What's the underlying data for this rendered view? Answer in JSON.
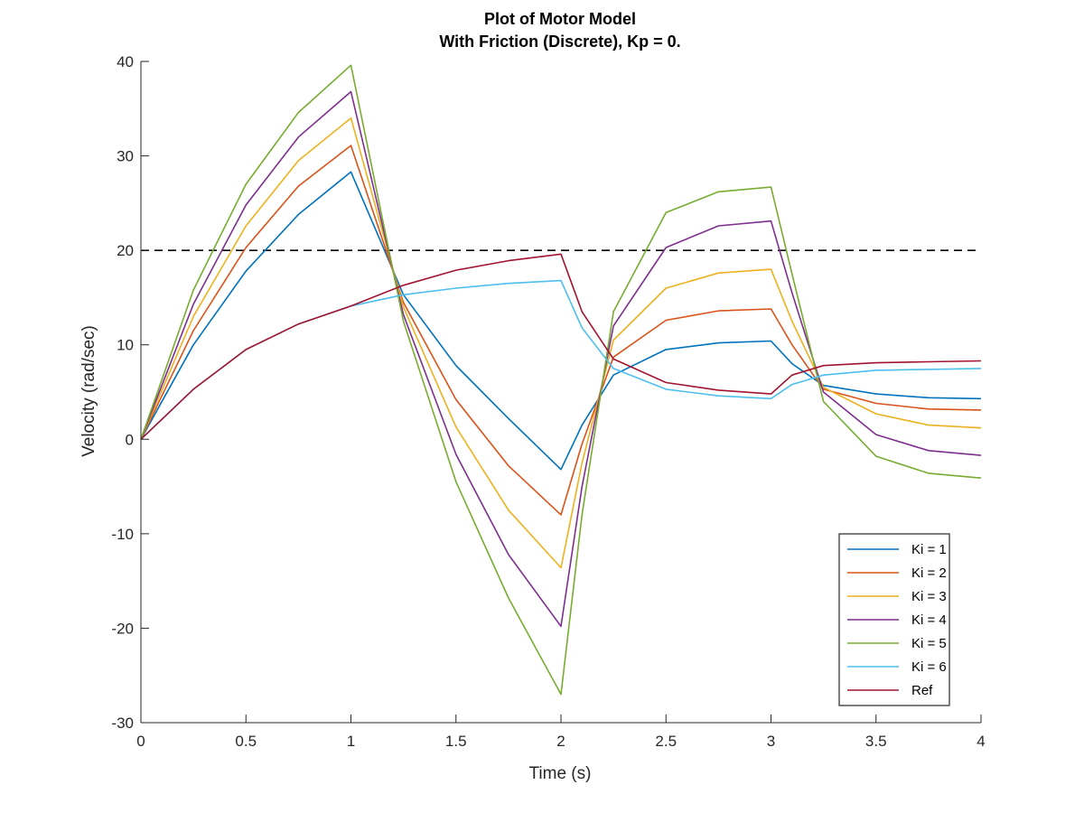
{
  "chart_data": {
    "type": "line",
    "title_line1": "Plot of Motor Model",
    "title_line2": "With Friction (Discrete), Kp = 0.",
    "xlabel": "Time (s)",
    "ylabel": "Velocity (rad/sec)",
    "xlim": [
      0,
      4
    ],
    "ylim": [
      -30,
      40
    ],
    "xticks": [
      0,
      0.5,
      1,
      1.5,
      2,
      2.5,
      3,
      3.5,
      4
    ],
    "yticks": [
      -30,
      -20,
      -10,
      0,
      10,
      20,
      30,
      40
    ],
    "xtick_labels": [
      "0",
      "0.5",
      "1",
      "1.5",
      "2",
      "2.5",
      "3",
      "3.5",
      "4"
    ],
    "ytick_labels": [
      "-30",
      "-20",
      "-10",
      "0",
      "10",
      "20",
      "30",
      "40"
    ],
    "grid": false,
    "legend_position": "bottom-right",
    "reference_line": {
      "y": 20,
      "style": "dashed",
      "color": "#000000"
    },
    "series": [
      {
        "name": "Ki = 1",
        "color": "#0072BD",
        "x": [
          0,
          0.25,
          0.5,
          0.75,
          1,
          1.25,
          1.5,
          1.75,
          2,
          2.1,
          2.25,
          2.5,
          2.75,
          3,
          3.1,
          3.25,
          3.5,
          3.75,
          4
        ],
        "y": [
          0,
          10,
          17.8,
          23.8,
          28.3,
          15.3,
          7.8,
          2.2,
          -3.2,
          1.5,
          6.8,
          9.5,
          10.2,
          10.4,
          8,
          5.7,
          4.8,
          4.4,
          4.3
        ]
      },
      {
        "name": "Ki = 2",
        "color": "#D95319",
        "x": [
          0,
          0.25,
          0.5,
          0.75,
          1,
          1.25,
          1.5,
          1.75,
          2,
          2.1,
          2.25,
          2.5,
          2.75,
          3,
          3.1,
          3.25,
          3.5,
          3.75,
          4
        ],
        "y": [
          0,
          11.5,
          20.3,
          26.8,
          31.1,
          14.5,
          4.2,
          -2.8,
          -8,
          -0.5,
          8.7,
          12.6,
          13.6,
          13.8,
          10,
          5.3,
          3.8,
          3.2,
          3.1
        ]
      },
      {
        "name": "Ki = 3",
        "color": "#EDB120",
        "x": [
          0,
          0.25,
          0.5,
          0.75,
          1,
          1.25,
          1.5,
          1.75,
          2,
          2.1,
          2.25,
          2.5,
          2.75,
          3,
          3.1,
          3.25,
          3.5,
          3.75,
          4
        ],
        "y": [
          0,
          13,
          22.6,
          29.5,
          34,
          14,
          1.3,
          -7.5,
          -13.6,
          -2.5,
          10.5,
          16,
          17.6,
          18,
          12.5,
          5.5,
          2.7,
          1.5,
          1.2
        ]
      },
      {
        "name": "Ki = 4",
        "color": "#7E2F8E",
        "x": [
          0,
          0.25,
          0.5,
          0.75,
          1,
          1.25,
          1.5,
          1.75,
          2,
          2.1,
          2.25,
          2.5,
          2.75,
          3,
          3.1,
          3.25,
          3.5,
          3.75,
          4
        ],
        "y": [
          0,
          14.3,
          24.8,
          32,
          36.8,
          13.2,
          -1.6,
          -12.2,
          -19.8,
          -5,
          12,
          20.3,
          22.6,
          23.1,
          15.5,
          5,
          0.5,
          -1.2,
          -1.7
        ]
      },
      {
        "name": "Ki = 5",
        "color": "#77AC30",
        "x": [
          0,
          0.25,
          0.5,
          0.75,
          1,
          1.25,
          1.5,
          1.75,
          2,
          2.1,
          2.25,
          2.5,
          2.75,
          3,
          3.1,
          3.25,
          3.5,
          3.75,
          4
        ],
        "y": [
          0,
          15.8,
          27,
          34.6,
          39.6,
          12.5,
          -4.5,
          -16.8,
          -27,
          -8,
          13.5,
          24,
          26.2,
          26.7,
          17.5,
          4,
          -1.8,
          -3.6,
          -4.1
        ]
      },
      {
        "name": "Ki = 6",
        "color": "#4DBEEE",
        "x": [
          0,
          0.25,
          0.5,
          0.75,
          1,
          1.25,
          1.5,
          1.75,
          2,
          2.1,
          2.25,
          2.5,
          2.75,
          3,
          3.1,
          3.25,
          3.5,
          3.75,
          4
        ],
        "y": [
          0,
          5.3,
          9.5,
          12.2,
          14.1,
          15.3,
          16,
          16.5,
          16.8,
          11.8,
          7.5,
          5.3,
          4.6,
          4.3,
          5.8,
          6.8,
          7.3,
          7.4,
          7.5
        ]
      },
      {
        "name": "Ref",
        "color": "#A2142F",
        "x": [
          0,
          0.25,
          0.5,
          0.75,
          1,
          1.25,
          1.5,
          1.75,
          2,
          2.1,
          2.25,
          2.5,
          2.75,
          3,
          3.1,
          3.25,
          3.5,
          3.75,
          4
        ],
        "y": [
          0,
          5.3,
          9.5,
          12.2,
          14.1,
          16.3,
          17.9,
          18.9,
          19.6,
          13.5,
          8.5,
          6,
          5.2,
          4.8,
          6.8,
          7.8,
          8.1,
          8.2,
          8.3
        ]
      }
    ]
  }
}
